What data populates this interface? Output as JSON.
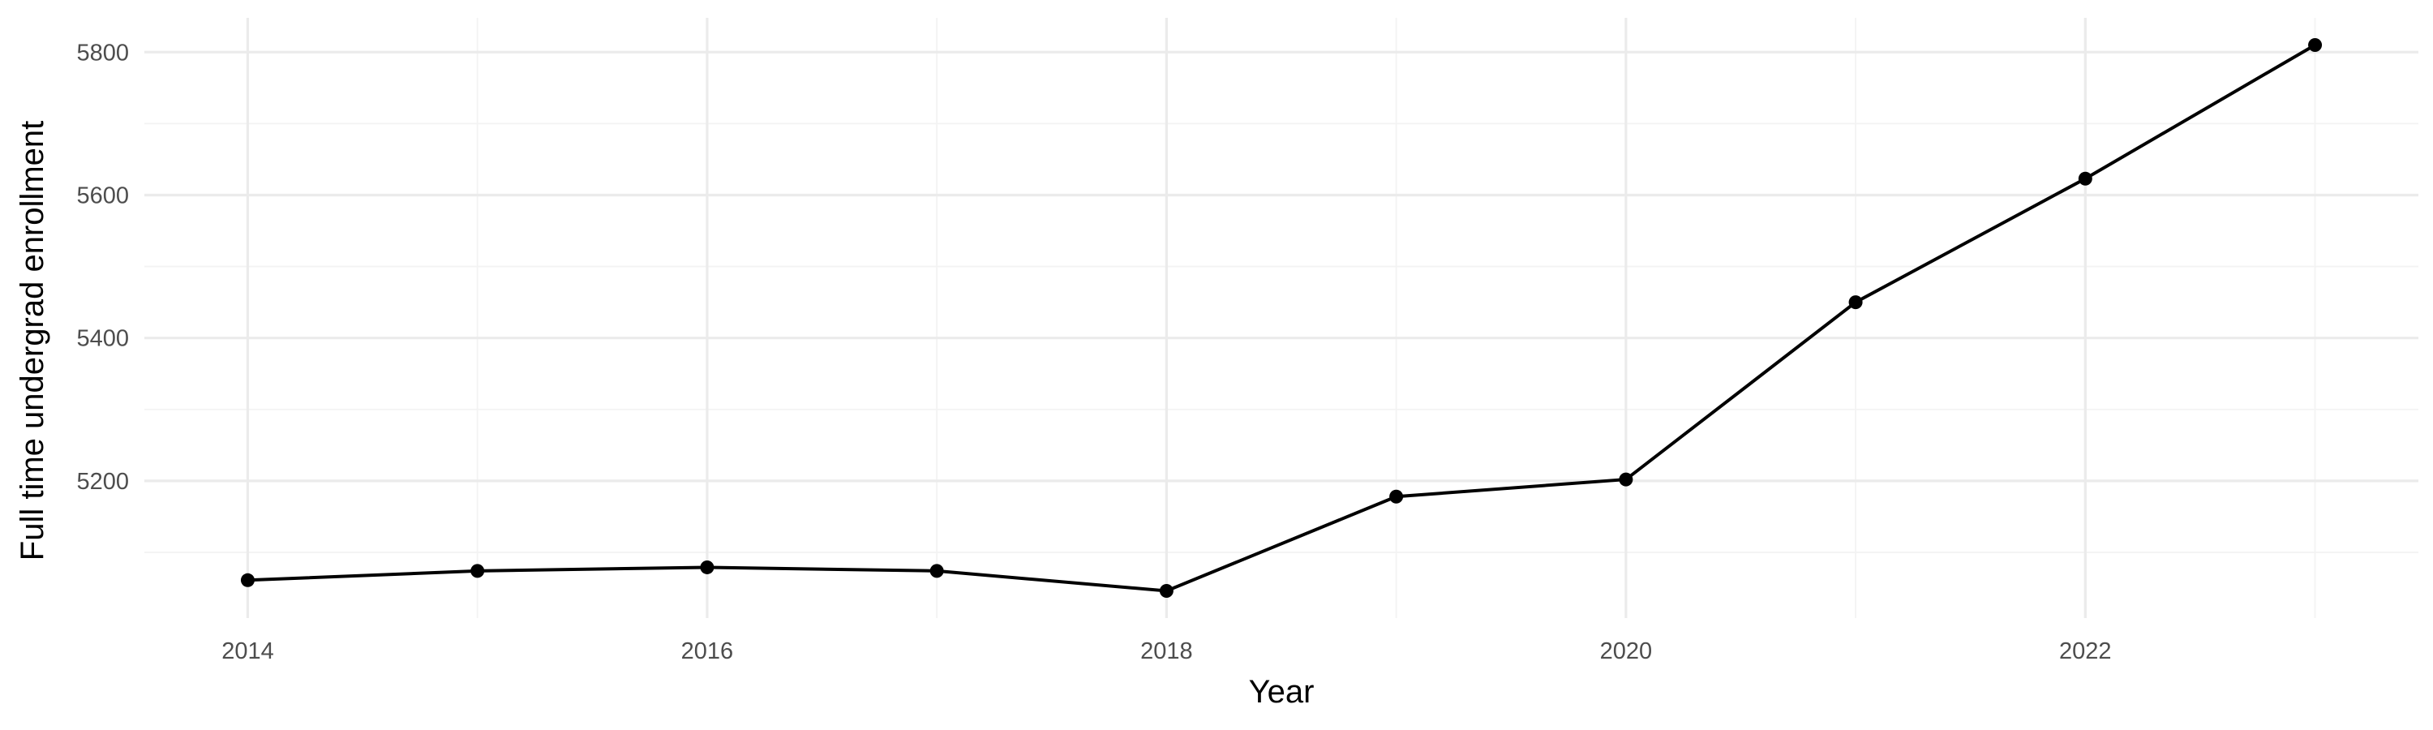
{
  "chart_data": {
    "type": "line",
    "title": "",
    "xlabel": "Year",
    "ylabel": "Full time undergrad enrollment",
    "x": [
      2014,
      2015,
      2016,
      2017,
      2018,
      2019,
      2020,
      2021,
      2022,
      2023
    ],
    "series": [
      {
        "values": [
          5061,
          5074,
          5079,
          5074,
          5046,
          5178,
          5202,
          5450,
          5623,
          5810
        ],
        "color": "#000000"
      }
    ],
    "xlim": [
      2013.55,
      2023.45
    ],
    "ylim": [
      5008,
      5848
    ],
    "x_ticks": [
      2014,
      2016,
      2018,
      2020,
      2022
    ],
    "x_tick_labels": [
      "2014",
      "2016",
      "2018",
      "2020",
      "2022"
    ],
    "y_ticks": [
      5200,
      5400,
      5600,
      5800
    ],
    "y_tick_labels": [
      "5200",
      "5400",
      "5600",
      "5800"
    ],
    "grid": true,
    "legend": "none",
    "point_markers": true
  }
}
